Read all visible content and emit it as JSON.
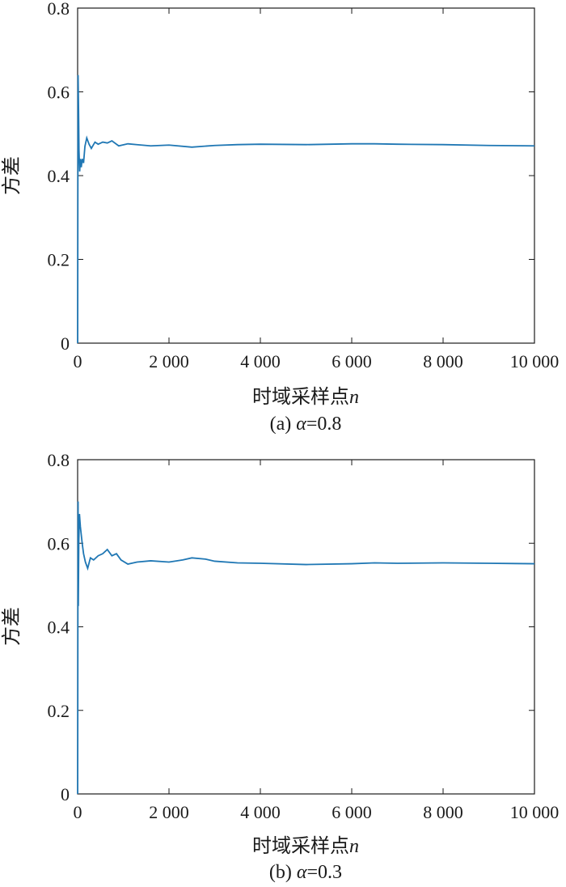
{
  "line_color": "#1f77b4",
  "chart_data": [
    {
      "type": "line",
      "title": "",
      "caption_prefix": "(a) ",
      "caption_symbol": "α",
      "caption_suffix": "=0.8",
      "xlabel": "时域采样点",
      "xlabel_var": "n",
      "ylabel": "方差",
      "xlim": [
        0,
        10000
      ],
      "ylim": [
        0,
        0.8
      ],
      "xticks": [
        0,
        2000,
        4000,
        6000,
        8000,
        10000
      ],
      "xtick_labels": [
        "0",
        "2 000",
        "4 000",
        "6 000",
        "8 000",
        "10 000"
      ],
      "yticks": [
        0,
        0.2,
        0.4,
        0.6,
        0.8
      ],
      "ytick_labels": [
        "0",
        "0.2",
        "0.4",
        "0.6",
        "0.8"
      ],
      "grid": false,
      "series": [
        {
          "x": [
            1,
            5,
            10,
            20,
            30,
            45,
            60,
            80,
            100,
            130,
            160,
            200,
            250,
            300,
            380,
            450,
            550,
            650,
            750,
            900,
            1100,
            1300,
            1600,
            2000,
            2500,
            3000,
            3500,
            4000,
            5000,
            6000,
            6500,
            7000,
            8000,
            9000,
            10000
          ],
          "y": [
            0.0,
            0.33,
            0.64,
            0.56,
            0.46,
            0.41,
            0.44,
            0.42,
            0.44,
            0.43,
            0.47,
            0.49,
            0.475,
            0.465,
            0.48,
            0.475,
            0.48,
            0.478,
            0.483,
            0.471,
            0.476,
            0.474,
            0.471,
            0.473,
            0.468,
            0.472,
            0.474,
            0.475,
            0.474,
            0.476,
            0.476,
            0.475,
            0.474,
            0.472,
            0.471
          ]
        }
      ]
    },
    {
      "type": "line",
      "title": "",
      "caption_prefix": "(b) ",
      "caption_symbol": "α",
      "caption_suffix": "=0.3",
      "xlabel": "时域采样点",
      "xlabel_var": "n",
      "ylabel": "方差",
      "xlim": [
        0,
        10000
      ],
      "ylim": [
        0,
        0.8
      ],
      "xticks": [
        0,
        2000,
        4000,
        6000,
        8000,
        10000
      ],
      "xtick_labels": [
        "0",
        "2 000",
        "4 000",
        "6 000",
        "8 000",
        "10 000"
      ],
      "yticks": [
        0,
        0.2,
        0.4,
        0.6,
        0.8
      ],
      "ytick_labels": [
        "0",
        "0.2",
        "0.4",
        "0.6",
        "0.8"
      ],
      "grid": false,
      "series": [
        {
          "x": [
            1,
            5,
            10,
            15,
            25,
            40,
            60,
            80,
            100,
            130,
            170,
            220,
            280,
            350,
            450,
            550,
            650,
            750,
            850,
            950,
            1100,
            1300,
            1600,
            2000,
            2300,
            2500,
            2800,
            3000,
            3500,
            4000,
            5000,
            6000,
            6500,
            7000,
            8000,
            9000,
            10000
          ],
          "y": [
            0.0,
            0.35,
            0.7,
            0.45,
            0.6,
            0.67,
            0.64,
            0.62,
            0.6,
            0.575,
            0.555,
            0.54,
            0.565,
            0.56,
            0.57,
            0.575,
            0.585,
            0.57,
            0.575,
            0.56,
            0.55,
            0.555,
            0.558,
            0.555,
            0.56,
            0.565,
            0.562,
            0.557,
            0.553,
            0.552,
            0.549,
            0.551,
            0.553,
            0.552,
            0.553,
            0.552,
            0.551
          ]
        }
      ]
    }
  ]
}
